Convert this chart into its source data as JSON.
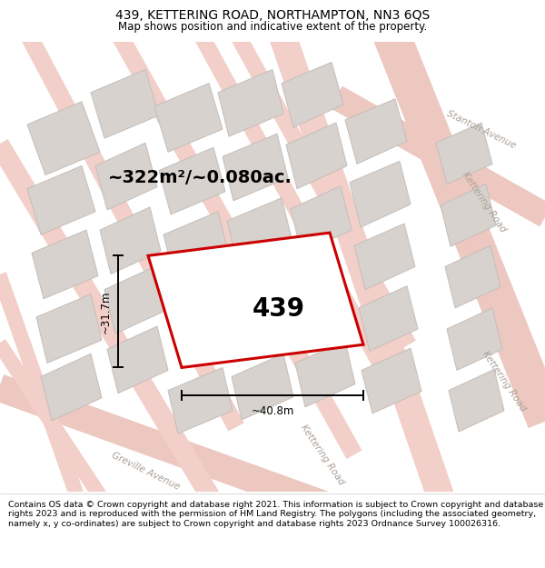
{
  "title": "439, KETTERING ROAD, NORTHAMPTON, NN3 6QS",
  "subtitle": "Map shows position and indicative extent of the property.",
  "area_text": "~322m²/~0.080ac.",
  "width_label": "~40.8m",
  "height_label": "~31.7m",
  "property_number": "439",
  "footer": "Contains OS data © Crown copyright and database right 2021. This information is subject to Crown copyright and database rights 2023 and is reproduced with the permission of HM Land Registry. The polygons (including the associated geometry, namely x, y co-ordinates) are subject to Crown copyright and database rights 2023 Ordnance Survey 100026316.",
  "map_bg": "#ede8e4",
  "road_color": "#f2cfc8",
  "road_color2": "#ecc8c0",
  "building_fc": "#d8d2ce",
  "building_ec": "#c4beba",
  "plot_color": "#cc0000",
  "plot_fill": "white",
  "road_label_color": "#aaa098",
  "title_fontsize": 10,
  "subtitle_fontsize": 8.5,
  "area_fontsize": 14,
  "number_fontsize": 20,
  "footer_fontsize": 6.8
}
